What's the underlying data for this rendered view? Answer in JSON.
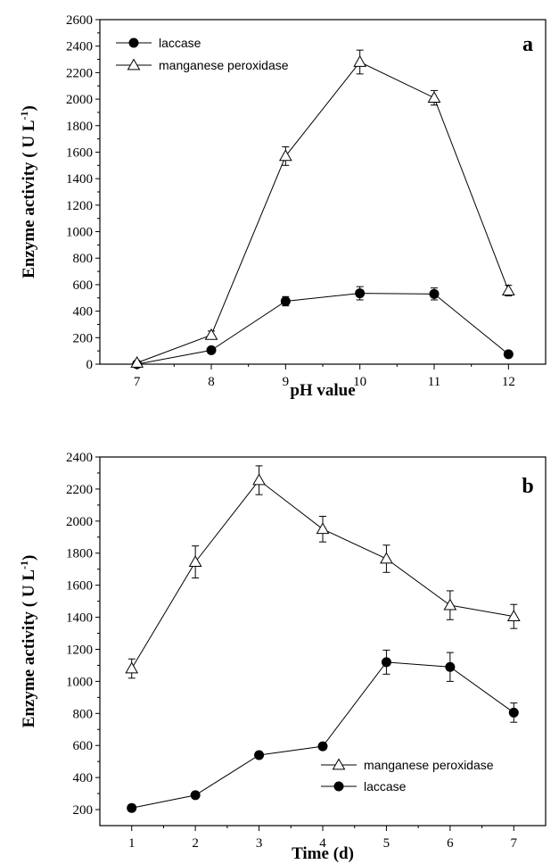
{
  "chart_data": [
    {
      "type": "line",
      "panel_label": "a",
      "xlabel": "pH value",
      "ylabel": "Enzyme activity ( U L-1)",
      "ylabel_main": "Enzyme activity ( U L",
      "ylabel_sup": "-1",
      "ylabel_close": ")",
      "xlim": [
        6.5,
        12.5
      ],
      "ylim": [
        0,
        2600
      ],
      "xticks": [
        7,
        8,
        9,
        10,
        11,
        12
      ],
      "yticks": [
        0,
        200,
        400,
        600,
        800,
        1000,
        1200,
        1400,
        1600,
        1800,
        2000,
        2200,
        2400,
        2600
      ],
      "legend_position": "top-left",
      "series": [
        {
          "name": "laccase",
          "marker": "circle",
          "x": [
            7,
            8,
            9,
            10,
            11,
            12
          ],
          "y": [
            0,
            105,
            475,
            535,
            530,
            75
          ],
          "err": [
            0,
            15,
            35,
            50,
            45,
            10
          ]
        },
        {
          "name": "manganese peroxidase",
          "marker": "triangle",
          "x": [
            7,
            8,
            9,
            10,
            11,
            12
          ],
          "y": [
            10,
            220,
            1570,
            2280,
            2010,
            555
          ],
          "err": [
            10,
            30,
            70,
            90,
            55,
            40
          ]
        }
      ]
    },
    {
      "type": "line",
      "panel_label": "b",
      "xlabel": "Time (d)",
      "ylabel": "Enzyme activity ( U L-1)",
      "ylabel_main": "Enzyme activity ( U L",
      "ylabel_sup": "-1",
      "ylabel_close": ")",
      "xlim": [
        0.5,
        7.5
      ],
      "ylim": [
        100,
        2400
      ],
      "xticks": [
        1,
        2,
        3,
        4,
        5,
        6,
        7
      ],
      "yticks": [
        200,
        400,
        600,
        800,
        1000,
        1200,
        1400,
        1600,
        1800,
        2000,
        2200,
        2400
      ],
      "legend_position": "bottom-right",
      "series": [
        {
          "name": "manganese peroxidase",
          "marker": "triangle",
          "x": [
            1,
            2,
            3,
            4,
            5,
            6,
            7
          ],
          "y": [
            1080,
            1745,
            2255,
            1950,
            1765,
            1475,
            1405
          ],
          "err": [
            60,
            100,
            90,
            80,
            85,
            90,
            75
          ]
        },
        {
          "name": "laccase",
          "marker": "circle",
          "x": [
            1,
            2,
            3,
            4,
            5,
            6,
            7
          ],
          "y": [
            210,
            290,
            540,
            595,
            1120,
            1090,
            805
          ],
          "err": [
            20,
            10,
            10,
            10,
            75,
            90,
            60
          ]
        }
      ]
    }
  ]
}
